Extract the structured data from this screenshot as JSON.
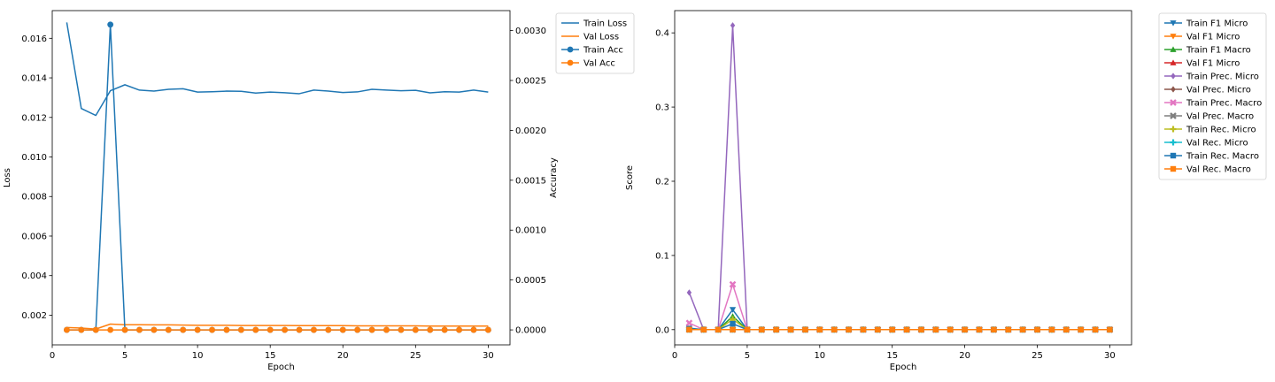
{
  "chart_data": [
    {
      "type": "line",
      "xlabel": "Epoch",
      "ylabel": "Loss",
      "y2label": "Accuracy",
      "xlim": [
        0,
        31.5
      ],
      "xticks": [
        0,
        5,
        10,
        15,
        20,
        25,
        30
      ],
      "ylim": [
        0.0005,
        0.0174
      ],
      "yticks": [
        0.002,
        0.004,
        0.006,
        0.008,
        0.01,
        0.012,
        0.014,
        0.016
      ],
      "ytick_labels": [
        "0.002",
        "0.004",
        "0.006",
        "0.008",
        "0.010",
        "0.012",
        "0.014",
        "0.016"
      ],
      "y2lim": [
        -0.00015,
        0.0032
      ],
      "y2ticks": [
        0,
        0.0005,
        0.001,
        0.0015,
        0.002,
        0.0025,
        0.003
      ],
      "y2tick_labels": [
        "0.0000",
        "0.0005",
        "0.0010",
        "0.0015",
        "0.0020",
        "0.0025",
        "0.0030"
      ],
      "legend_position": "outside-right-top",
      "x": [
        1,
        2,
        3,
        4,
        5,
        6,
        7,
        8,
        9,
        10,
        11,
        12,
        13,
        14,
        15,
        16,
        17,
        18,
        19,
        20,
        21,
        22,
        23,
        24,
        25,
        26,
        27,
        28,
        29,
        30
      ],
      "series": [
        {
          "name": "Train Loss",
          "axis": "left",
          "color": "#1f77b4",
          "marker": "none",
          "values": [
            0.0168,
            0.01245,
            0.0121,
            0.01335,
            0.01365,
            0.01338,
            0.01333,
            0.01342,
            0.01345,
            0.01328,
            0.0133,
            0.01333,
            0.01332,
            0.01323,
            0.01328,
            0.01325,
            0.0132,
            0.01338,
            0.01333,
            0.01326,
            0.01329,
            0.01342,
            0.01338,
            0.01335,
            0.01337,
            0.01324,
            0.0133,
            0.01328,
            0.01338,
            0.01328
          ]
        },
        {
          "name": "Val Loss",
          "axis": "left",
          "color": "#ff7f0e",
          "marker": "none",
          "values": [
            0.00138,
            0.00135,
            0.0013,
            0.00155,
            0.00152,
            0.00152,
            0.00151,
            0.00151,
            0.0015,
            0.00149,
            0.00149,
            0.00149,
            0.00148,
            0.00148,
            0.00148,
            0.00148,
            0.00147,
            0.00147,
            0.00147,
            0.00147,
            0.00146,
            0.00146,
            0.00146,
            0.00146,
            0.00146,
            0.00145,
            0.00145,
            0.00145,
            0.00145,
            0.00145
          ]
        },
        {
          "name": "Train Acc",
          "axis": "right",
          "color": "#1f77b4",
          "marker": "circle",
          "values": [
            0,
            0,
            0,
            0.00306,
            0,
            0,
            0,
            0,
            0,
            0,
            0,
            0,
            0,
            0,
            0,
            0,
            0,
            0,
            0,
            0,
            0,
            0,
            0,
            0,
            0,
            0,
            0,
            0,
            0,
            0
          ]
        },
        {
          "name": "Val Acc",
          "axis": "right",
          "color": "#ff7f0e",
          "marker": "circle",
          "values": [
            0,
            0,
            0,
            0,
            0,
            0,
            0,
            0,
            0,
            0,
            0,
            0,
            0,
            0,
            0,
            0,
            0,
            0,
            0,
            0,
            0,
            0,
            0,
            0,
            0,
            0,
            0,
            0,
            0,
            0
          ]
        }
      ]
    },
    {
      "type": "line",
      "xlabel": "Epoch",
      "ylabel": "Score",
      "xlim": [
        0,
        31.5
      ],
      "xticks": [
        0,
        5,
        10,
        15,
        20,
        25,
        30
      ],
      "ylim": [
        -0.0205,
        0.43
      ],
      "yticks": [
        0,
        0.1,
        0.2,
        0.3,
        0.4
      ],
      "ytick_labels": [
        "0.0",
        "0.1",
        "0.2",
        "0.3",
        "0.4"
      ],
      "legend_position": "outside-right-top",
      "x": [
        1,
        2,
        3,
        4,
        5,
        6,
        7,
        8,
        9,
        10,
        11,
        12,
        13,
        14,
        15,
        16,
        17,
        18,
        19,
        20,
        21,
        22,
        23,
        24,
        25,
        26,
        27,
        28,
        29,
        30
      ],
      "series": [
        {
          "name": "Train F1 Micro",
          "color": "#1f77b4",
          "marker": "tri-down",
          "values": [
            0.002,
            0,
            0,
            0.027,
            0,
            0,
            0,
            0,
            0,
            0,
            0,
            0,
            0,
            0,
            0,
            0,
            0,
            0,
            0,
            0,
            0,
            0,
            0,
            0,
            0,
            0,
            0,
            0,
            0,
            0
          ]
        },
        {
          "name": "Val F1 Micro",
          "color": "#ff7f0e",
          "marker": "tri-down",
          "values": [
            0,
            0,
            0,
            0,
            0,
            0,
            0,
            0,
            0,
            0,
            0,
            0,
            0,
            0,
            0,
            0,
            0,
            0,
            0,
            0,
            0,
            0,
            0,
            0,
            0,
            0,
            0,
            0,
            0,
            0
          ]
        },
        {
          "name": "Train F1 Macro",
          "color": "#2ca02c",
          "marker": "tri-up",
          "values": [
            0.001,
            0,
            0,
            0.018,
            0,
            0,
            0,
            0,
            0,
            0,
            0,
            0,
            0,
            0,
            0,
            0,
            0,
            0,
            0,
            0,
            0,
            0,
            0,
            0,
            0,
            0,
            0,
            0,
            0,
            0
          ]
        },
        {
          "name": "Val F1 Micro",
          "color": "#d62728",
          "marker": "tri-up",
          "values": [
            0,
            0,
            0,
            0,
            0,
            0,
            0,
            0,
            0,
            0,
            0,
            0,
            0,
            0,
            0,
            0,
            0,
            0,
            0,
            0,
            0,
            0,
            0,
            0,
            0,
            0,
            0,
            0,
            0,
            0
          ]
        },
        {
          "name": "Train Prec. Micro",
          "color": "#9467bd",
          "marker": "diamond",
          "values": [
            0.05,
            0,
            0,
            0.41,
            0,
            0,
            0,
            0,
            0,
            0,
            0,
            0,
            0,
            0,
            0,
            0,
            0,
            0,
            0,
            0,
            0,
            0,
            0,
            0,
            0,
            0,
            0,
            0,
            0,
            0
          ]
        },
        {
          "name": "Val Prec. Micro",
          "color": "#8c564b",
          "marker": "diamond",
          "values": [
            0,
            0,
            0,
            0,
            0,
            0,
            0,
            0,
            0,
            0,
            0,
            0,
            0,
            0,
            0,
            0,
            0,
            0,
            0,
            0,
            0,
            0,
            0,
            0,
            0,
            0,
            0,
            0,
            0,
            0
          ]
        },
        {
          "name": "Train Prec. Macro",
          "color": "#e377c2",
          "marker": "x",
          "values": [
            0.009,
            0,
            0,
            0.061,
            0,
            0,
            0,
            0,
            0,
            0,
            0,
            0,
            0,
            0,
            0,
            0,
            0,
            0,
            0,
            0,
            0,
            0,
            0,
            0,
            0,
            0,
            0,
            0,
            0,
            0
          ]
        },
        {
          "name": "Val Prec. Macro",
          "color": "#7f7f7f",
          "marker": "x",
          "values": [
            0,
            0,
            0,
            0,
            0,
            0,
            0,
            0,
            0,
            0,
            0,
            0,
            0,
            0,
            0,
            0,
            0,
            0,
            0,
            0,
            0,
            0,
            0,
            0,
            0,
            0,
            0,
            0,
            0,
            0
          ]
        },
        {
          "name": "Train Rec. Micro",
          "color": "#bcbd22",
          "marker": "plus",
          "values": [
            0.001,
            0,
            0,
            0.014,
            0,
            0,
            0,
            0,
            0,
            0,
            0,
            0,
            0,
            0,
            0,
            0,
            0,
            0,
            0,
            0,
            0,
            0,
            0,
            0,
            0,
            0,
            0,
            0,
            0,
            0
          ]
        },
        {
          "name": "Val Rec. Micro",
          "color": "#17becf",
          "marker": "plus",
          "values": [
            0,
            0,
            0,
            0,
            0,
            0,
            0,
            0,
            0,
            0,
            0,
            0,
            0,
            0,
            0,
            0,
            0,
            0,
            0,
            0,
            0,
            0,
            0,
            0,
            0,
            0,
            0,
            0,
            0,
            0
          ]
        },
        {
          "name": "Train Rec. Macro",
          "color": "#1f77b4",
          "marker": "square",
          "values": [
            0.001,
            0,
            0,
            0.008,
            0,
            0,
            0,
            0,
            0,
            0,
            0,
            0,
            0,
            0,
            0,
            0,
            0,
            0,
            0,
            0,
            0,
            0,
            0,
            0,
            0,
            0,
            0,
            0,
            0,
            0
          ]
        },
        {
          "name": "Val Rec. Macro",
          "color": "#ff7f0e",
          "marker": "square",
          "values": [
            0,
            0,
            0,
            0,
            0,
            0,
            0,
            0,
            0,
            0,
            0,
            0,
            0,
            0,
            0,
            0,
            0,
            0,
            0,
            0,
            0,
            0,
            0,
            0,
            0,
            0,
            0,
            0,
            0,
            0
          ]
        }
      ]
    }
  ]
}
